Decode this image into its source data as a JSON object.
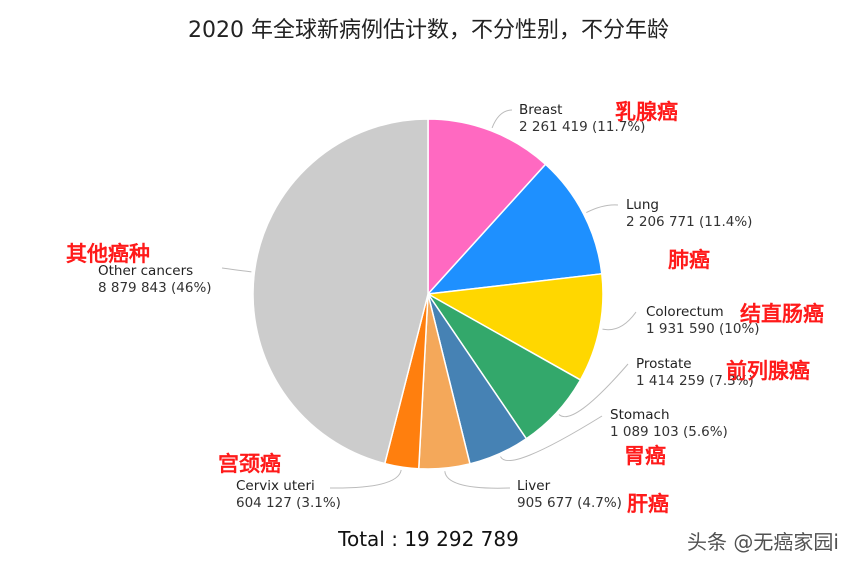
{
  "chart_data": {
    "type": "pie",
    "title": "2020 年全球新病例估计数，不分性别，不分年龄",
    "start": "top",
    "direction": "clockwise",
    "slices": [
      {
        "name": "Breast",
        "value": 2261419,
        "percent_label": "2 261 419 (11.7%)",
        "percent": 11.7,
        "zh": "乳腺癌",
        "color": "#ff69c1"
      },
      {
        "name": "Lung",
        "value": 2206771,
        "percent_label": "2 206 771 (11.4%)",
        "percent": 11.4,
        "zh": "肺癌",
        "color": "#1e90ff"
      },
      {
        "name": "Colorectum",
        "value": 1931590,
        "percent_label": "1 931 590 (10%)",
        "percent": 10,
        "zh": "结直肠癌",
        "color": "#ffd700"
      },
      {
        "name": "Prostate",
        "value": 1414259,
        "percent_label": "1 414 259 (7.3%)",
        "percent": 7.3,
        "zh": "前列腺癌",
        "color": "#33a86b"
      },
      {
        "name": "Stomach",
        "value": 1089103,
        "percent_label": "1 089 103 (5.6%)",
        "percent": 5.6,
        "zh": "胃癌",
        "color": "#4682b4"
      },
      {
        "name": "Liver",
        "value": 905677,
        "percent_label": "905 677 (4.7%)",
        "percent": 4.7,
        "zh": "肝癌",
        "color": "#f4a85a"
      },
      {
        "name": "Cervix uteri",
        "value": 604127,
        "percent_label": "604 127 (3.1%)",
        "percent": 3.1,
        "zh": "宫颈癌",
        "color": "#ff7f0e"
      },
      {
        "name": "Other cancers",
        "value": 8879843,
        "percent_label": "8 879 843 (46%)",
        "percent": 46,
        "zh": "其他癌种",
        "color": "#cccccc"
      }
    ],
    "total_label": "Total : 19 292 789"
  },
  "watermark": "头条 @无癌家园i"
}
